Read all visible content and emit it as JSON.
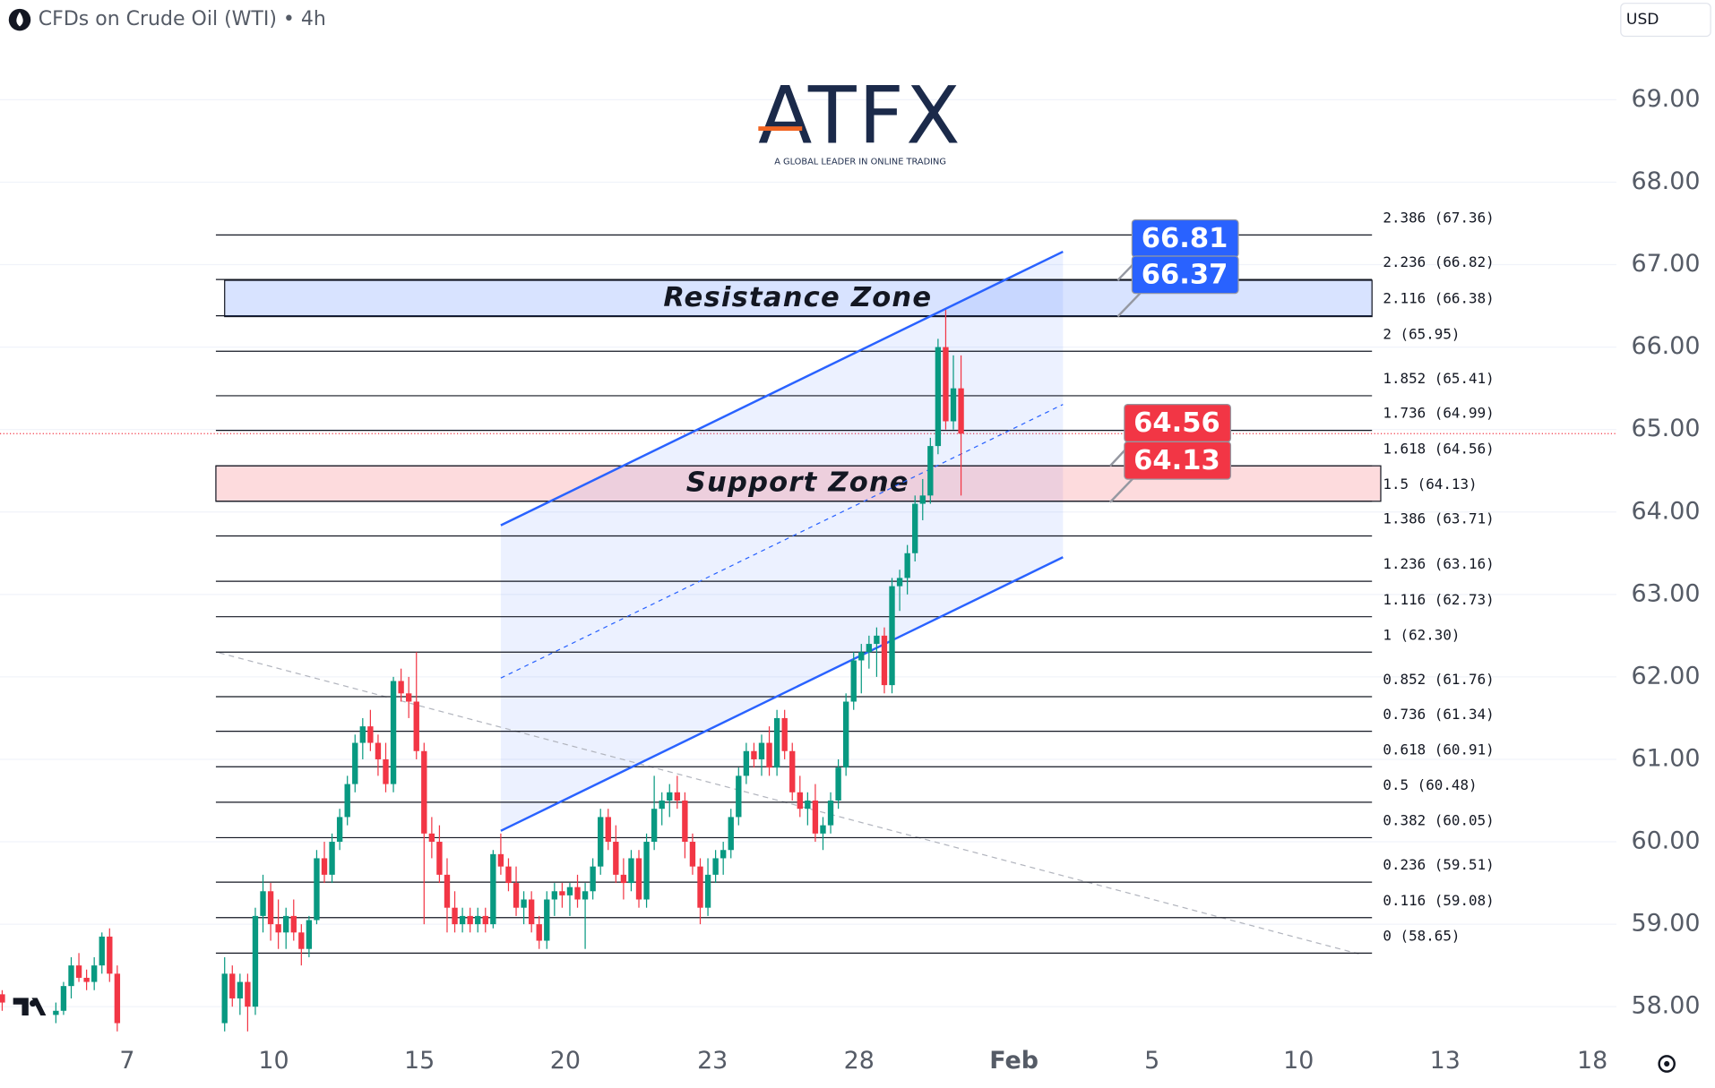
{
  "chart_data": {
    "type": "candlestick",
    "title": "CFDs on Crude Oil (WTI) • 4h",
    "currency": "USD",
    "logo": {
      "name": "ATFX",
      "tagline": "A GLOBAL LEADER IN ONLINE TRADING"
    },
    "colors": {
      "up": "#089981",
      "down": "#f23645"
    },
    "ylim": [
      57.68,
      70.21
    ],
    "yticks": [
      {
        "value": 58,
        "label": "58.00"
      },
      {
        "value": 59,
        "label": "59.00"
      },
      {
        "value": 60,
        "label": "60.00"
      },
      {
        "value": 61,
        "label": "61.00"
      },
      {
        "value": 62,
        "label": "62.00"
      },
      {
        "value": 63,
        "label": "63.00"
      },
      {
        "value": 64,
        "label": "64.00"
      },
      {
        "value": 65,
        "label": "65.00"
      },
      {
        "value": 66,
        "label": "66.00"
      },
      {
        "value": 67,
        "label": "67.00"
      },
      {
        "value": 68,
        "label": "68.00"
      },
      {
        "value": 69,
        "label": "69.00"
      }
    ],
    "xlim": [
      0,
      210
    ],
    "xticks": [
      {
        "value": 16.3,
        "label": "7"
      },
      {
        "value": 35.4,
        "label": "10"
      },
      {
        "value": 54.4,
        "label": "15"
      },
      {
        "value": 73.4,
        "label": "20"
      },
      {
        "value": 92.6,
        "label": "23"
      },
      {
        "value": 111.7,
        "label": "28"
      },
      {
        "value": 131.9,
        "label": "Feb"
      },
      {
        "value": 149.9,
        "label": "5"
      },
      {
        "value": 169,
        "label": "10"
      },
      {
        "value": 188.1,
        "label": "13"
      },
      {
        "value": 207.3,
        "label": "18"
      }
    ],
    "x": [
      0,
      7,
      8,
      9,
      10,
      11,
      12,
      13,
      14,
      15,
      29,
      30,
      31,
      32,
      33,
      34,
      35,
      36,
      37,
      38,
      39,
      40,
      41,
      42,
      43,
      44,
      45,
      46,
      47,
      48,
      49,
      50,
      51,
      52,
      53,
      54,
      55,
      56,
      57,
      58,
      59,
      60,
      61,
      62,
      63,
      64,
      65,
      66,
      67,
      68,
      69,
      70,
      71,
      72,
      73,
      74,
      75,
      76,
      77,
      78,
      79,
      80,
      81,
      82,
      83,
      84,
      85,
      86,
      87,
      88,
      89,
      90,
      91,
      92,
      93,
      94,
      95,
      96,
      97,
      98,
      99,
      100,
      101,
      102,
      103,
      104,
      105,
      106,
      107,
      108,
      109,
      110,
      111,
      112,
      113,
      114,
      115,
      116,
      117,
      118,
      119,
      120,
      121,
      122,
      123,
      124,
      125
    ],
    "candles": [
      [
        58.15,
        58.2,
        57.95,
        58.05
      ],
      [
        57.9,
        58.05,
        57.8,
        57.95
      ],
      [
        57.95,
        58.3,
        57.9,
        58.25
      ],
      [
        58.25,
        58.6,
        58.1,
        58.5
      ],
      [
        58.5,
        58.65,
        58.3,
        58.35
      ],
      [
        58.35,
        58.45,
        58.2,
        58.3
      ],
      [
        58.3,
        58.6,
        58.2,
        58.5
      ],
      [
        58.5,
        58.9,
        58.4,
        58.85
      ],
      [
        58.85,
        58.95,
        58.3,
        58.4
      ],
      [
        58.4,
        58.5,
        57.7,
        57.8
      ],
      [
        57.8,
        58.6,
        57.7,
        58.4
      ],
      [
        58.4,
        58.5,
        58.0,
        58.1
      ],
      [
        58.1,
        58.4,
        57.9,
        58.3
      ],
      [
        58.3,
        58.4,
        57.7,
        58.0
      ],
      [
        58.0,
        59.2,
        57.9,
        59.1
      ],
      [
        59.1,
        59.6,
        58.9,
        59.4
      ],
      [
        59.4,
        59.5,
        58.8,
        59.0
      ],
      [
        59.0,
        59.3,
        58.7,
        58.9
      ],
      [
        58.9,
        59.2,
        58.7,
        59.1
      ],
      [
        59.1,
        59.3,
        58.8,
        58.9
      ],
      [
        58.9,
        59.0,
        58.5,
        58.7
      ],
      [
        58.7,
        59.1,
        58.6,
        59.05
      ],
      [
        59.05,
        59.9,
        59.0,
        59.8
      ],
      [
        59.8,
        60.0,
        59.5,
        59.6
      ],
      [
        59.6,
        60.1,
        59.5,
        60.0
      ],
      [
        60.0,
        60.4,
        59.9,
        60.3
      ],
      [
        60.3,
        60.8,
        60.2,
        60.7
      ],
      [
        60.7,
        61.3,
        60.6,
        61.2
      ],
      [
        61.2,
        61.5,
        61.0,
        61.4
      ],
      [
        61.4,
        61.6,
        61.1,
        61.2
      ],
      [
        61.2,
        61.3,
        60.8,
        61.0
      ],
      [
        61.0,
        61.2,
        60.6,
        60.7
      ],
      [
        60.7,
        62.0,
        60.6,
        61.95
      ],
      [
        61.95,
        62.1,
        61.7,
        61.8
      ],
      [
        61.8,
        62.0,
        61.5,
        61.7
      ],
      [
        61.7,
        62.3,
        61.0,
        61.1
      ],
      [
        61.1,
        61.2,
        59.0,
        60.1
      ],
      [
        60.1,
        60.3,
        59.8,
        60.0
      ],
      [
        60.0,
        60.2,
        59.5,
        59.6
      ],
      [
        59.6,
        59.8,
        58.9,
        59.2
      ],
      [
        59.2,
        59.4,
        58.9,
        59.0
      ],
      [
        59.0,
        59.2,
        58.9,
        59.1
      ],
      [
        59.1,
        59.2,
        58.9,
        59.0
      ],
      [
        59.0,
        59.2,
        58.9,
        59.1
      ],
      [
        59.1,
        59.2,
        58.9,
        59.0
      ],
      [
        59.0,
        59.9,
        58.95,
        59.85
      ],
      [
        59.85,
        60.1,
        59.6,
        59.7
      ],
      [
        59.7,
        59.8,
        59.4,
        59.5
      ],
      [
        59.5,
        59.7,
        59.1,
        59.2
      ],
      [
        59.2,
        59.4,
        59.0,
        59.3
      ],
      [
        59.3,
        59.4,
        58.9,
        59.0
      ],
      [
        59.0,
        59.1,
        58.7,
        58.8
      ],
      [
        58.8,
        59.4,
        58.7,
        59.3
      ],
      [
        59.3,
        59.5,
        59.1,
        59.4
      ],
      [
        59.4,
        59.5,
        59.2,
        59.35
      ],
      [
        59.35,
        59.5,
        59.1,
        59.45
      ],
      [
        59.45,
        59.6,
        59.2,
        59.3
      ],
      [
        59.3,
        59.5,
        58.7,
        59.4
      ],
      [
        59.4,
        59.8,
        59.3,
        59.7
      ],
      [
        59.7,
        60.4,
        59.6,
        60.3
      ],
      [
        60.3,
        60.4,
        59.9,
        60.0
      ],
      [
        60.0,
        60.2,
        59.5,
        59.6
      ],
      [
        59.6,
        59.8,
        59.3,
        59.5
      ],
      [
        59.5,
        59.9,
        59.4,
        59.8
      ],
      [
        59.8,
        59.9,
        59.2,
        59.3
      ],
      [
        59.3,
        60.1,
        59.2,
        60.0
      ],
      [
        60.0,
        60.8,
        59.9,
        60.4
      ],
      [
        60.4,
        60.6,
        60.2,
        60.5
      ],
      [
        60.5,
        60.7,
        60.3,
        60.6
      ],
      [
        60.6,
        60.8,
        60.4,
        60.5
      ],
      [
        60.5,
        60.6,
        59.8,
        60.0
      ],
      [
        60.0,
        60.1,
        59.6,
        59.7
      ],
      [
        59.7,
        59.8,
        59.0,
        59.2
      ],
      [
        59.2,
        59.8,
        59.1,
        59.6
      ],
      [
        59.6,
        59.9,
        59.5,
        59.8
      ],
      [
        59.8,
        60.0,
        59.6,
        59.9
      ],
      [
        59.9,
        60.4,
        59.8,
        60.3
      ],
      [
        60.3,
        60.9,
        60.2,
        60.8
      ],
      [
        60.8,
        61.2,
        60.7,
        61.1
      ],
      [
        61.1,
        61.2,
        60.9,
        61.0
      ],
      [
        61.0,
        61.3,
        60.8,
        61.2
      ],
      [
        61.2,
        61.4,
        60.8,
        60.9
      ],
      [
        60.9,
        61.6,
        60.8,
        61.5
      ],
      [
        61.5,
        61.6,
        61.0,
        61.1
      ],
      [
        61.1,
        61.2,
        60.5,
        60.6
      ],
      [
        60.6,
        60.8,
        60.3,
        60.4
      ],
      [
        60.4,
        60.6,
        60.2,
        60.5
      ],
      [
        60.5,
        60.7,
        60.0,
        60.1
      ],
      [
        60.1,
        60.3,
        59.9,
        60.2
      ],
      [
        60.2,
        60.6,
        60.1,
        60.5
      ],
      [
        60.5,
        61.0,
        60.4,
        60.9
      ],
      [
        60.9,
        61.8,
        60.8,
        61.7
      ],
      [
        61.7,
        62.3,
        61.6,
        62.2
      ],
      [
        62.2,
        62.4,
        61.8,
        62.3
      ],
      [
        62.3,
        62.5,
        62.1,
        62.4
      ],
      [
        62.4,
        62.6,
        62.0,
        62.5
      ],
      [
        62.5,
        62.6,
        61.8,
        61.9
      ],
      [
        61.9,
        63.2,
        61.8,
        63.1
      ],
      [
        63.1,
        63.3,
        62.8,
        63.2
      ],
      [
        63.2,
        63.6,
        63.0,
        63.5
      ],
      [
        63.5,
        64.2,
        63.4,
        64.1
      ],
      [
        64.1,
        64.4,
        63.9,
        64.2
      ],
      [
        64.2,
        64.9,
        64.1,
        64.8
      ],
      [
        64.8,
        66.1,
        64.7,
        66.0
      ],
      [
        66.0,
        66.45,
        65.0,
        65.1
      ],
      [
        65.1,
        65.9,
        65.0,
        65.5
      ],
      [
        65.5,
        65.9,
        64.2,
        64.95
      ]
    ],
    "fib_levels": [
      {
        "label": "2.386 (67.36)",
        "value": 67.36
      },
      {
        "label": "2.236 (66.82)",
        "value": 66.82
      },
      {
        "label": "2.116 (66.38)",
        "value": 66.38
      },
      {
        "label": "2 (65.95)",
        "value": 65.95
      },
      {
        "label": "1.852 (65.41)",
        "value": 65.41
      },
      {
        "label": "1.736 (64.99)",
        "value": 64.99
      },
      {
        "label": "1.618 (64.56)",
        "value": 64.56
      },
      {
        "label": "1.5 (64.13)",
        "value": 64.13
      },
      {
        "label": "1.386 (63.71)",
        "value": 63.71
      },
      {
        "label": "1.236 (63.16)",
        "value": 63.16
      },
      {
        "label": "1.116 (62.73)",
        "value": 62.73
      },
      {
        "label": "1 (62.30)",
        "value": 62.3
      },
      {
        "label": "0.852 (61.76)",
        "value": 61.76
      },
      {
        "label": "0.736 (61.34)",
        "value": 61.34
      },
      {
        "label": "0.618 (60.91)",
        "value": 60.91
      },
      {
        "label": "0.5 (60.48)",
        "value": 60.48
      },
      {
        "label": "0.382 (60.05)",
        "value": 60.05
      },
      {
        "label": "0.236 (59.51)",
        "value": 59.51
      },
      {
        "label": "0.116 (59.08)",
        "value": 59.08
      },
      {
        "label": "0 (58.65)",
        "value": 58.65
      }
    ],
    "zones": [
      {
        "label": "Resistance Zone",
        "low": 66.37,
        "high": 66.81,
        "color": "#2962ff"
      },
      {
        "label": "Support Zone",
        "low": 64.13,
        "high": 64.56,
        "color": "#f23645"
      }
    ]
  }
}
